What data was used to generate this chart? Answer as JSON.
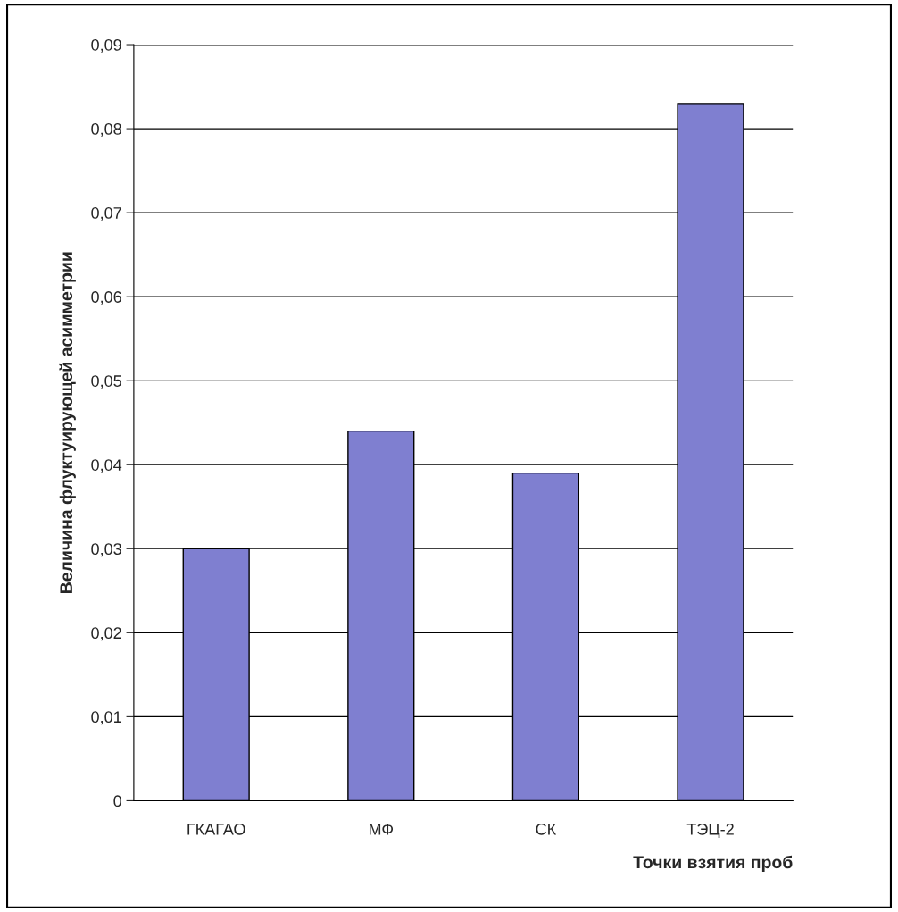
{
  "chart_data": {
    "type": "bar",
    "xlabel": "Точки взятия проб",
    "ylabel": "Величина флуктуирующей асимметрии",
    "categories": [
      "ГКАГАО",
      "МФ",
      "СК",
      "ТЭЦ-2"
    ],
    "values": [
      0.03,
      0.044,
      0.039,
      0.083
    ],
    "color": "#7f7fd0",
    "ylim": [
      0,
      0.09
    ],
    "yticks": [
      0,
      {
        "value": 0.01,
        "label": "0,01"
      },
      {
        "value": 0.02,
        "label": "0,02"
      },
      {
        "value": 0.03,
        "label": "0,03"
      },
      {
        "value": 0.04,
        "label": "0,04"
      },
      {
        "value": 0.05,
        "label": "0,05"
      },
      {
        "value": 0.06,
        "label": "0,06"
      },
      {
        "value": 0.07,
        "label": "0,07"
      },
      {
        "value": 0.08,
        "label": "0,08"
      },
      {
        "value": 0.09,
        "label": "0,09"
      }
    ],
    "grid": "y"
  }
}
